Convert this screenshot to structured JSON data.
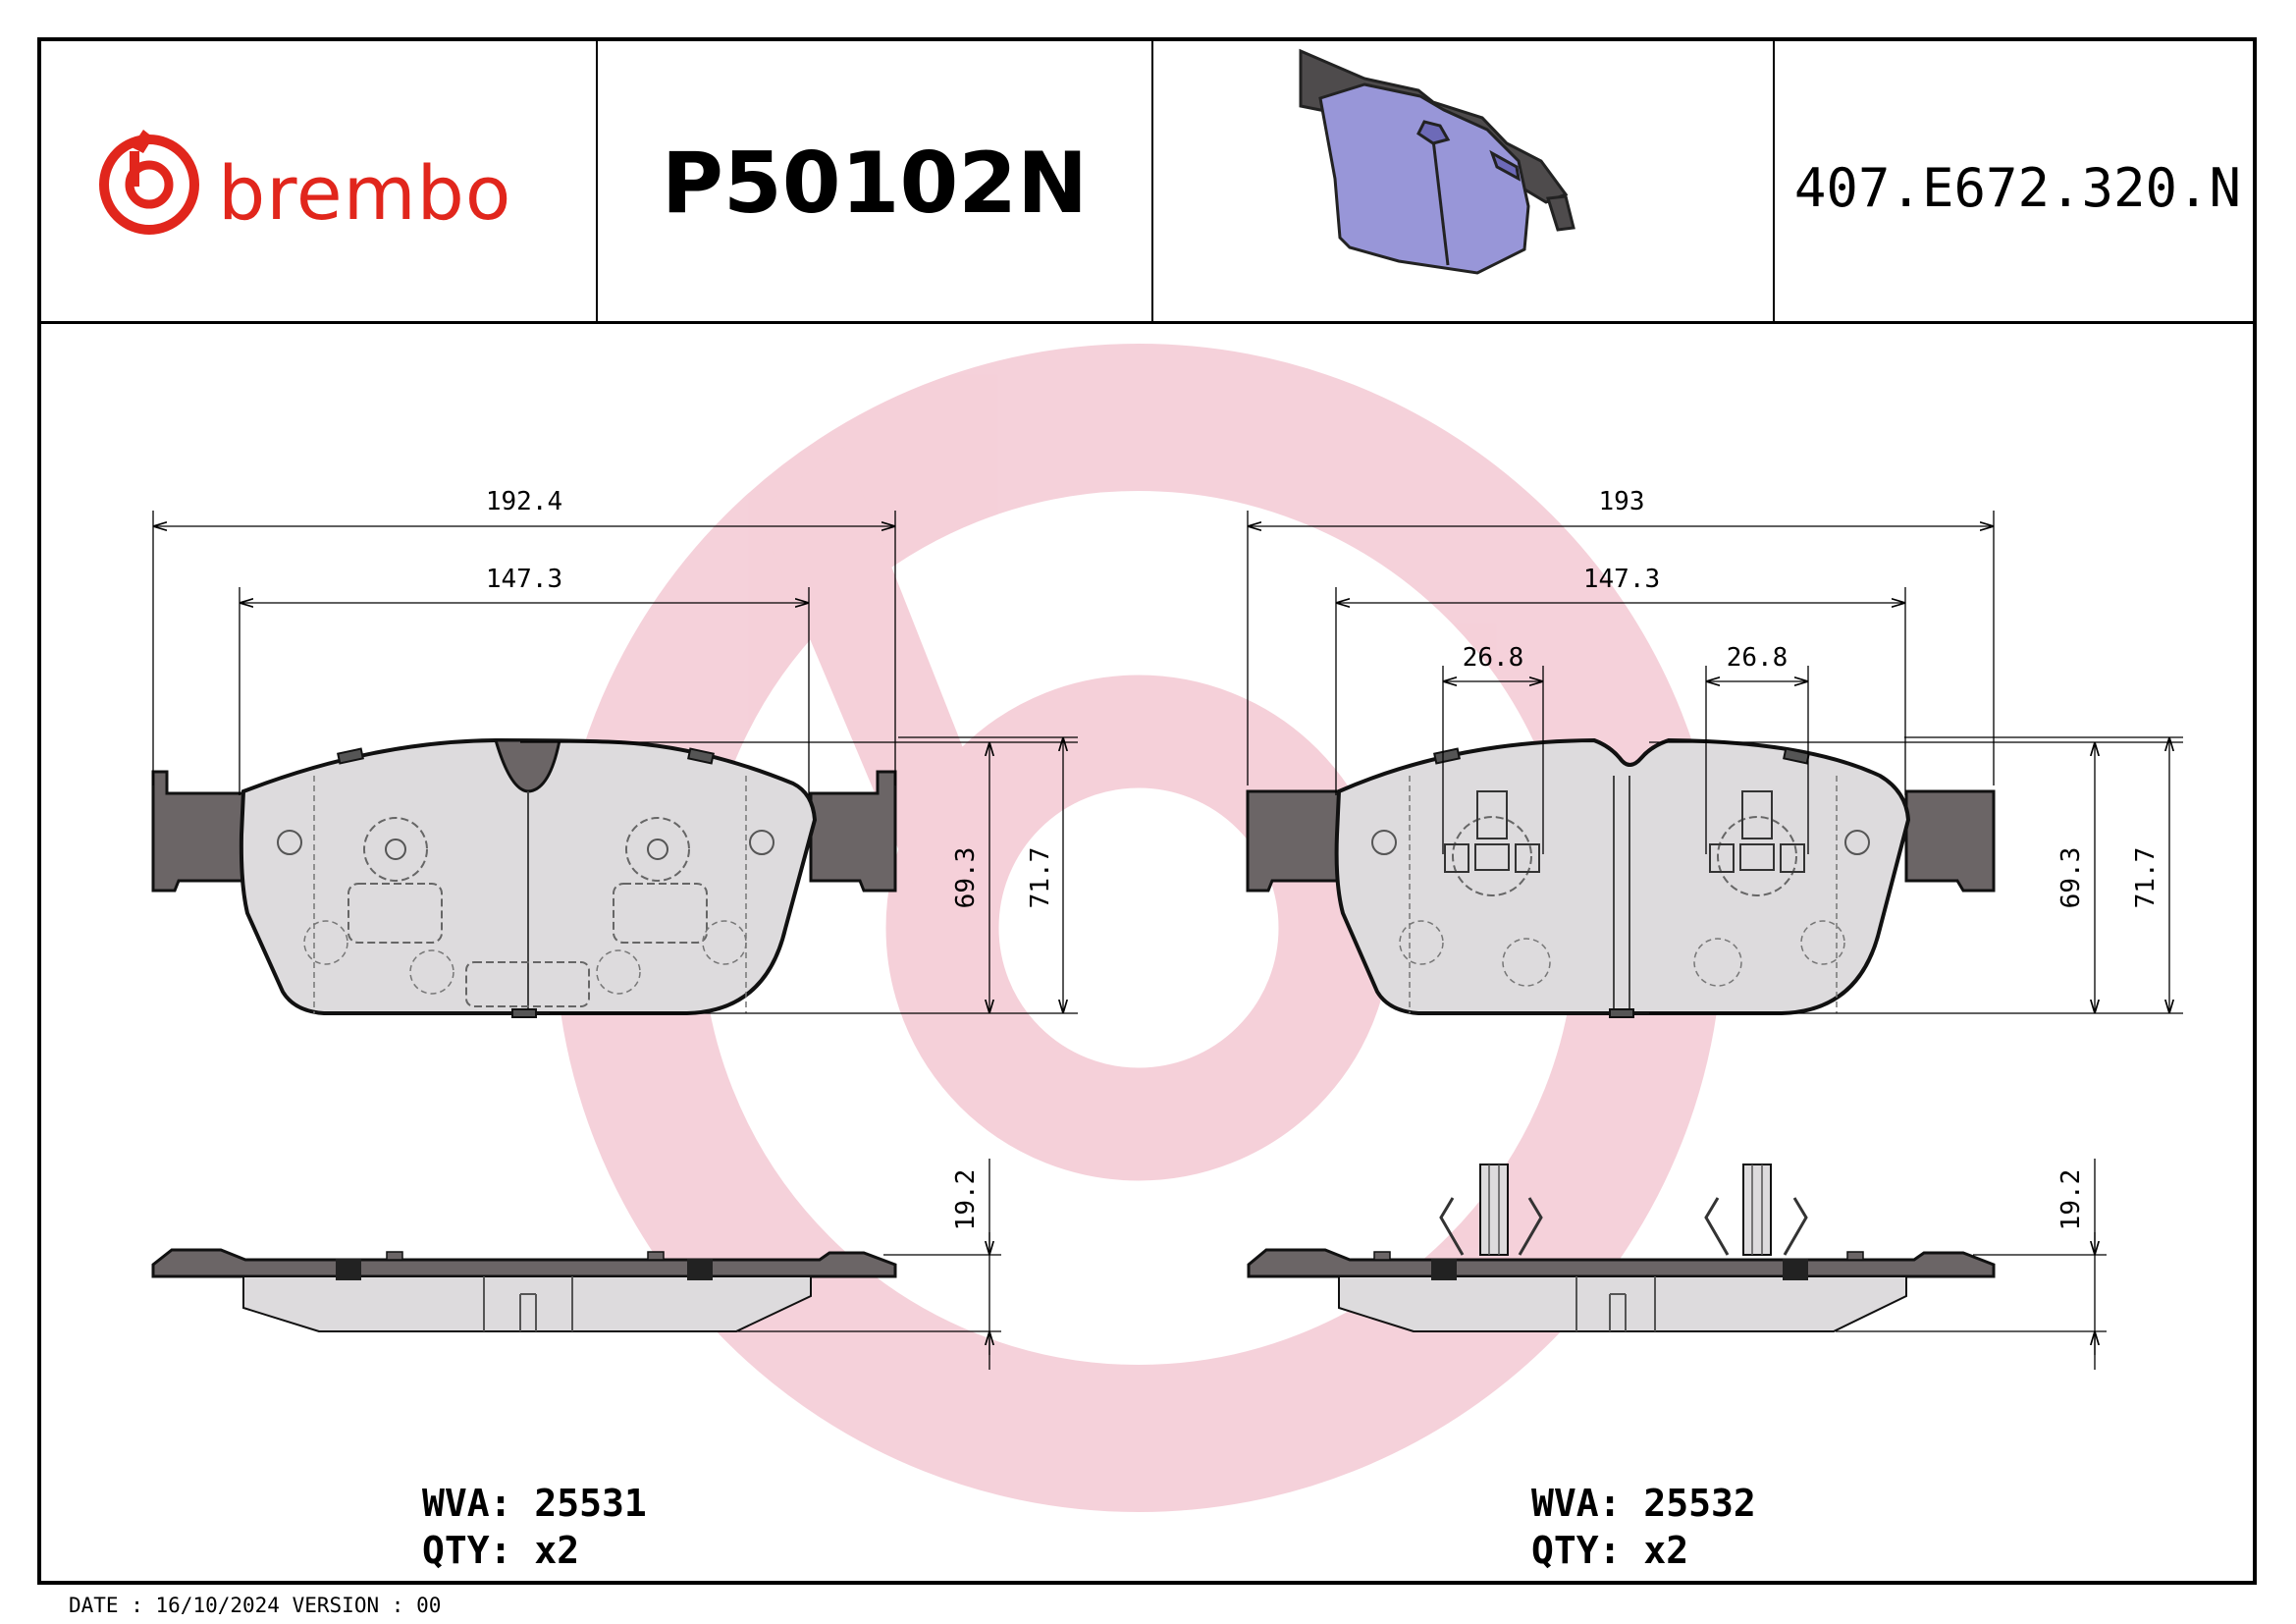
{
  "header": {
    "brand_name": "brembo",
    "part_number": "P50102N",
    "reference_number": "407.E672.320.N"
  },
  "colors": {
    "brand_red": "#e1261c",
    "watermark_pink": "#d9486a",
    "pad_fill": "#dddbdd",
    "backplate": "#6b6566",
    "preview_pad": "#9896d8"
  },
  "left_pad": {
    "dimensions": {
      "overall_width": "192.4",
      "friction_width": "147.3",
      "friction_height": "69.3",
      "overall_height": "71.7",
      "thickness": "19.2"
    },
    "wva_label": "WVA:",
    "wva_value": "25531",
    "qty_label": "QTY:",
    "qty_value": "x2"
  },
  "right_pad": {
    "dimensions": {
      "overall_width": "193",
      "friction_width": "147.3",
      "sensor_offset_left": "26.8",
      "sensor_offset_right": "26.8",
      "friction_height": "69.3",
      "overall_height": "71.7",
      "thickness": "19.2"
    },
    "wva_label": "WVA:",
    "wva_value": "25532",
    "qty_label": "QTY:",
    "qty_value": "x2"
  },
  "footer": {
    "date_label": "DATE :",
    "date_value": "16/10/2024",
    "version_label": "VERSION :",
    "version_value": "00"
  }
}
